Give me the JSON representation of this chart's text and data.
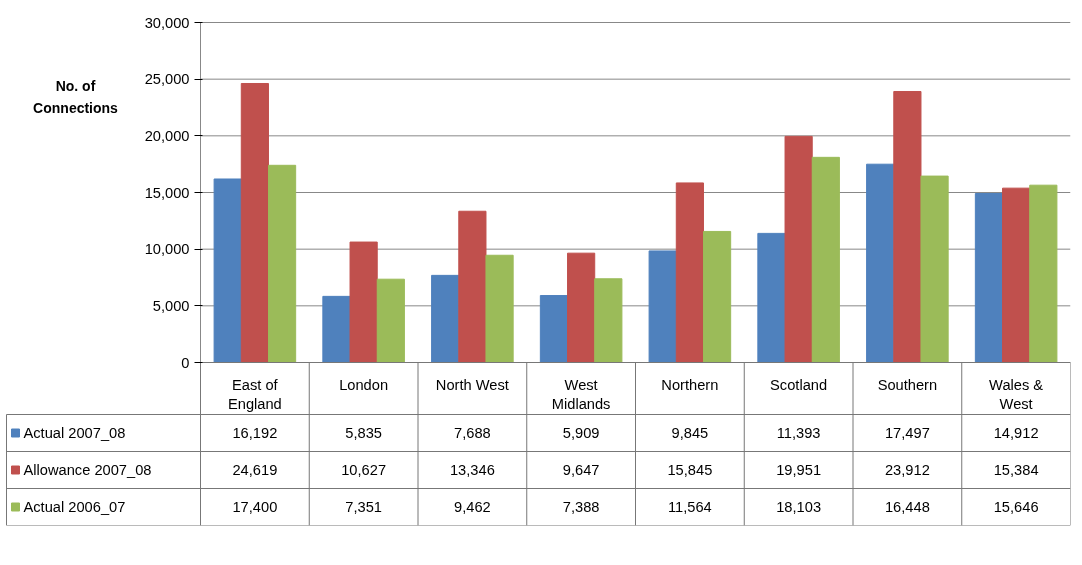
{
  "chart_data": {
    "type": "bar",
    "ylabel": "No. of Connections",
    "categories": [
      "East of England",
      "London",
      "North West",
      "West Midlands",
      "Northern",
      "Scotland",
      "Southern",
      "Wales & West"
    ],
    "series": [
      {
        "name": "Actual 2007_08",
        "color": "#4f81bd",
        "values": [
          16192,
          5835,
          7688,
          5909,
          9845,
          11393,
          17497,
          14912
        ],
        "value_labels": [
          "16,192",
          "5,835",
          "7,688",
          "5,909",
          "9,845",
          "11,393",
          "17,497",
          "14,912"
        ]
      },
      {
        "name": "Allowance 2007_08",
        "color": "#c0504d",
        "values": [
          24619,
          10627,
          13346,
          9647,
          15845,
          19951,
          23912,
          15384
        ],
        "value_labels": [
          "24,619",
          "10,627",
          "13,346",
          "9,647",
          "15,845",
          "19,951",
          "23,912",
          "15,384"
        ]
      },
      {
        "name": "Actual 2006_07",
        "color": "#9bbb59",
        "values": [
          17400,
          7351,
          9462,
          7388,
          11564,
          18103,
          16448,
          15646
        ],
        "value_labels": [
          "17,400",
          "7,351",
          "9,462",
          "7,388",
          "11,564",
          "18,103",
          "16,448",
          "15,646"
        ]
      }
    ],
    "ylim": [
      0,
      30000
    ],
    "yticks": [
      {
        "value": 0,
        "label": "0"
      },
      {
        "value": 5000,
        "label": "5,000"
      },
      {
        "value": 10000,
        "label": "10,000"
      },
      {
        "value": 15000,
        "label": "15,000"
      },
      {
        "value": 20000,
        "label": "20,000"
      },
      {
        "value": 25000,
        "label": "25,000"
      },
      {
        "value": 30000,
        "label": "30,000"
      }
    ],
    "grid": "y",
    "legend": "bottom"
  }
}
